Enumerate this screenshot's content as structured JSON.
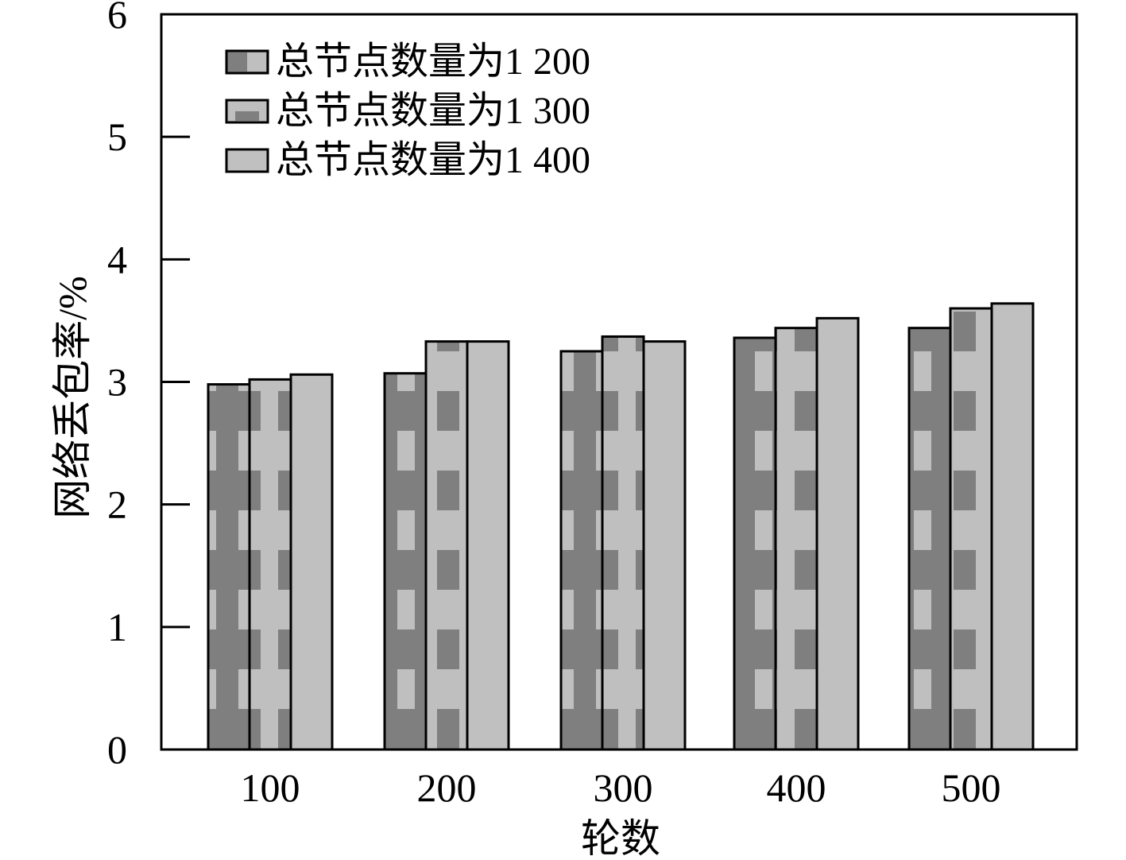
{
  "chart_data": {
    "type": "bar",
    "xlabel": "轮数",
    "ylabel": "网络丢包率/%",
    "categories": [
      "100",
      "200",
      "300",
      "400",
      "500"
    ],
    "yticks": [
      "0",
      "1",
      "2",
      "3",
      "4",
      "5",
      "6"
    ],
    "ylim": [
      0,
      6
    ],
    "grid": false,
    "legend_position": "top-left",
    "series": [
      {
        "name": "总节点数量为1 200",
        "values": [
          2.98,
          3.07,
          3.25,
          3.36,
          3.44
        ],
        "color": "#7f7f7f"
      },
      {
        "name": "总节点数量为1 300",
        "values": [
          3.02,
          3.33,
          3.37,
          3.44,
          3.6
        ],
        "color": "#bfbfbf"
      },
      {
        "name": "总节点数量为1 400",
        "values": [
          3.06,
          3.33,
          3.33,
          3.52,
          3.64
        ],
        "color": "#c0c0c0"
      }
    ]
  }
}
